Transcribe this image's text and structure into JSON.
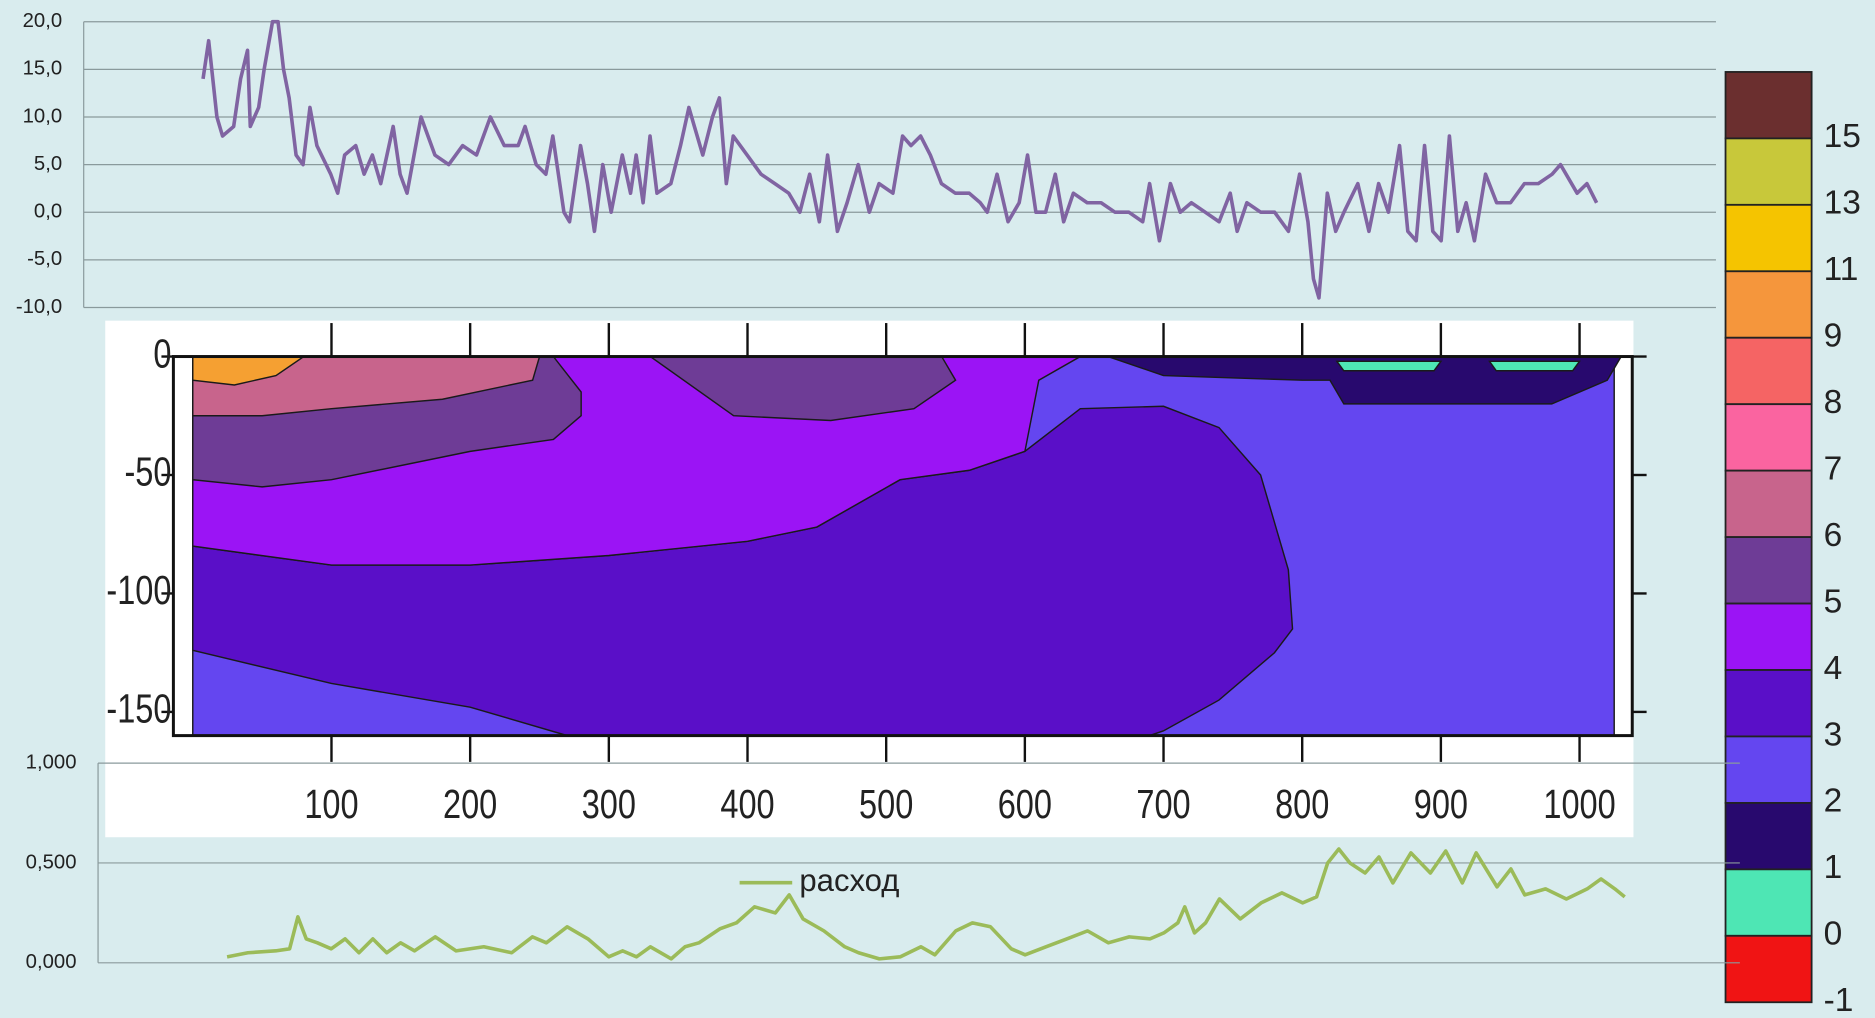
{
  "chart_data": [
    {
      "type": "line",
      "color": "#8064a2",
      "x": [
        8,
        12,
        18,
        22,
        30,
        35,
        40,
        42,
        48,
        52,
        58,
        62,
        66,
        70,
        75,
        80,
        85,
        90,
        100,
        105,
        110,
        118,
        124,
        130,
        136,
        145,
        150,
        155,
        165,
        175,
        185,
        195,
        205,
        215,
        225,
        235,
        240,
        248,
        255,
        260,
        268,
        272,
        280,
        285,
        290,
        296,
        302,
        310,
        316,
        320,
        325,
        330,
        335,
        345,
        352,
        358,
        362,
        368,
        375,
        380,
        385,
        390,
        400,
        410,
        420,
        430,
        438,
        445,
        452,
        458,
        465,
        472,
        480,
        488,
        495,
        505,
        512,
        518,
        525,
        532,
        540,
        550,
        560,
        568,
        573,
        580,
        588,
        596,
        602,
        608,
        615,
        622,
        628,
        635,
        645,
        655,
        665,
        675,
        685,
        690,
        697,
        705,
        712,
        720,
        730,
        740,
        748,
        753,
        760,
        770,
        780,
        790,
        798,
        804,
        808,
        812,
        818,
        824,
        830,
        840,
        848,
        855,
        862,
        870,
        876,
        882,
        888,
        894,
        900,
        906,
        912,
        918,
        924,
        932,
        940,
        950,
        960,
        970,
        980,
        986,
        998,
        1005,
        1012
      ],
      "values": [
        14,
        18,
        10,
        8,
        9,
        14,
        17,
        9,
        11,
        15,
        20,
        20,
        15,
        12,
        6,
        5,
        11,
        7,
        4,
        2,
        6,
        7,
        4,
        6,
        3,
        9,
        4,
        2,
        10,
        6,
        5,
        7,
        6,
        10,
        7,
        7,
        9,
        5,
        4,
        8,
        0,
        -1,
        7,
        3,
        -2,
        5,
        0,
        6,
        2,
        6,
        1,
        8,
        2,
        3,
        7,
        11,
        9,
        6,
        10,
        12,
        3,
        8,
        6,
        4,
        3,
        2,
        0,
        4,
        -1,
        6,
        -2,
        1,
        5,
        0,
        3,
        2,
        8,
        7,
        8,
        6,
        3,
        2,
        2,
        1,
        0,
        4,
        -1,
        1,
        6,
        0,
        0,
        4,
        -1,
        2,
        1,
        1,
        0,
        0,
        -1,
        3,
        -3,
        3,
        0,
        1,
        0,
        -1,
        2,
        -2,
        1,
        0,
        0,
        -2,
        4,
        -1,
        -7,
        -9,
        2,
        -2,
        0,
        3,
        -2,
        3,
        0,
        7,
        -2,
        -3,
        7,
        -2,
        -3,
        8,
        -2,
        1,
        -3,
        4,
        1,
        1,
        3,
        3,
        4,
        5,
        2,
        3,
        1
      ],
      "xlim": [
        -78,
        1098
      ],
      "ylim": [
        -10,
        20
      ],
      "yticks": [
        {
          "value": -10,
          "label": "-10,0"
        },
        {
          "value": -5,
          "label": "-5,0"
        },
        {
          "value": 0,
          "label": "0,0"
        },
        {
          "value": 5,
          "label": "5,0"
        },
        {
          "value": 10,
          "label": "10,0"
        },
        {
          "value": 15,
          "label": "15,0"
        },
        {
          "value": 20,
          "label": "20,0"
        }
      ],
      "grid": true
    },
    {
      "type": "contour",
      "xlim": [
        -14,
        1038
      ],
      "ylim": [
        -160,
        0
      ],
      "xticks": [
        100,
        200,
        300,
        400,
        500,
        600,
        700,
        800,
        900,
        1000
      ],
      "yticks": [
        0,
        -50,
        -100,
        -150
      ],
      "regions": [
        {
          "color": "#6446f0",
          "x": [
            0,
            1025,
            1025,
            0
          ],
          "y": [
            0,
            0,
            -160,
            -160
          ]
        },
        {
          "color": "#5a0fc8",
          "x": [
            0,
            100,
            200,
            300,
            400,
            450,
            510,
            560,
            600,
            640,
            700,
            740,
            770,
            790,
            793,
            780,
            740,
            700,
            690,
            270,
            200,
            100,
            0
          ],
          "y": [
            -80,
            -88,
            -88,
            -84,
            -78,
            -72,
            -52,
            -48,
            -40,
            -22,
            -21,
            -30,
            -50,
            -90,
            -115,
            -125,
            -145,
            -158,
            -160,
            -160,
            -148,
            -138,
            -124
          ]
        },
        {
          "color": "#9b14f5",
          "x": [
            0,
            640,
            610,
            600,
            560,
            510,
            450,
            400,
            300,
            200,
            100,
            0
          ],
          "y": [
            0,
            0,
            -10,
            -40,
            -48,
            -52,
            -72,
            -78,
            -84,
            -88,
            -88,
            -80
          ]
        },
        {
          "color": "#6e3c96",
          "x": [
            0,
            260,
            280,
            280,
            260,
            200,
            100,
            50,
            0
          ],
          "y": [
            0,
            0,
            -15,
            -25,
            -35,
            -40,
            -52,
            -55,
            -52
          ]
        },
        {
          "color": "#6e3c96",
          "x": [
            330,
            540,
            550,
            520,
            460,
            390
          ],
          "y": [
            0,
            0,
            -10,
            -22,
            -27,
            -25
          ]
        },
        {
          "color": "#c8648c",
          "x": [
            0,
            250,
            245,
            180,
            100,
            50,
            0
          ],
          "y": [
            0,
            0,
            -10,
            -18,
            -22,
            -25,
            -25
          ]
        },
        {
          "color": "#f5a032",
          "x": [
            0,
            80,
            60,
            30,
            0
          ],
          "y": [
            0,
            0,
            -8,
            -12,
            -10
          ]
        },
        {
          "color": "#28096e",
          "x": [
            660,
            1030,
            1020,
            980,
            830,
            820,
            800,
            700
          ],
          "y": [
            0,
            0,
            -10,
            -20,
            -20,
            -10,
            -10,
            -8
          ]
        },
        {
          "color": "#4ee6b4",
          "x": [
            825,
            900,
            895,
            830
          ],
          "y": [
            -2,
            -2,
            -6,
            -6
          ]
        },
        {
          "color": "#4ee6b4",
          "x": [
            935,
            1000,
            995,
            940
          ],
          "y": [
            -2,
            -2,
            -6,
            -6
          ]
        }
      ],
      "colorbar": {
        "levels": [
          15,
          13,
          11,
          9,
          8,
          7,
          6,
          5,
          4,
          3,
          2,
          1,
          0,
          -1
        ],
        "colors": [
          "#6b2f2f",
          "#c8c83a",
          "#f5c400",
          "#f5963c",
          "#f56464",
          "#fa64a0",
          "#c8648c",
          "#6e3c96",
          "#9b14f5",
          "#5a0fc8",
          "#6446f0",
          "#28096e",
          "#4ee6b4",
          "#f01414"
        ]
      }
    },
    {
      "type": "line",
      "series": [
        {
          "name": "расход",
          "color": "#9bbb59",
          "x": [
            25,
            40,
            60,
            70,
            76,
            82,
            90,
            100,
            110,
            120,
            130,
            140,
            150,
            160,
            175,
            190,
            210,
            230,
            245,
            255,
            270,
            285,
            300,
            310,
            320,
            330,
            345,
            355,
            365,
            380,
            392,
            405,
            420,
            430,
            440,
            455,
            470,
            480,
            495,
            510,
            525,
            535,
            550,
            562,
            575,
            590,
            600,
            615,
            630,
            645,
            660,
            675,
            690,
            700,
            710,
            715,
            722,
            730,
            740,
            755,
            770,
            785,
            800,
            810,
            818,
            826,
            834,
            845,
            855,
            865,
            878,
            892,
            903,
            915,
            925,
            940,
            950,
            960,
            975,
            990,
            1005,
            1015,
            1025,
            1032
          ],
          "values": [
            0.03,
            0.05,
            0.06,
            0.07,
            0.23,
            0.12,
            0.1,
            0.07,
            0.12,
            0.05,
            0.12,
            0.05,
            0.1,
            0.06,
            0.13,
            0.06,
            0.08,
            0.05,
            0.13,
            0.1,
            0.18,
            0.12,
            0.03,
            0.06,
            0.03,
            0.08,
            0.02,
            0.08,
            0.1,
            0.17,
            0.2,
            0.28,
            0.25,
            0.34,
            0.22,
            0.16,
            0.08,
            0.05,
            0.02,
            0.03,
            0.08,
            0.04,
            0.16,
            0.2,
            0.18,
            0.07,
            0.04,
            0.08,
            0.12,
            0.16,
            0.1,
            0.13,
            0.12,
            0.15,
            0.2,
            0.28,
            0.15,
            0.2,
            0.32,
            0.22,
            0.3,
            0.35,
            0.3,
            0.33,
            0.5,
            0.57,
            0.5,
            0.45,
            0.53,
            0.4,
            0.55,
            0.45,
            0.56,
            0.4,
            0.55,
            0.38,
            0.47,
            0.34,
            0.37,
            0.32,
            0.37,
            0.42,
            0.37,
            0.33
          ]
        }
      ],
      "xlim": [
        -68,
        1115
      ],
      "ylim": [
        0,
        1
      ],
      "yticks": [
        {
          "value": 0,
          "label": "0,000"
        },
        {
          "value": 0.5,
          "label": "0,500"
        },
        {
          "value": 1,
          "label": "1,000"
        }
      ],
      "grid": true,
      "legend": "top"
    }
  ]
}
